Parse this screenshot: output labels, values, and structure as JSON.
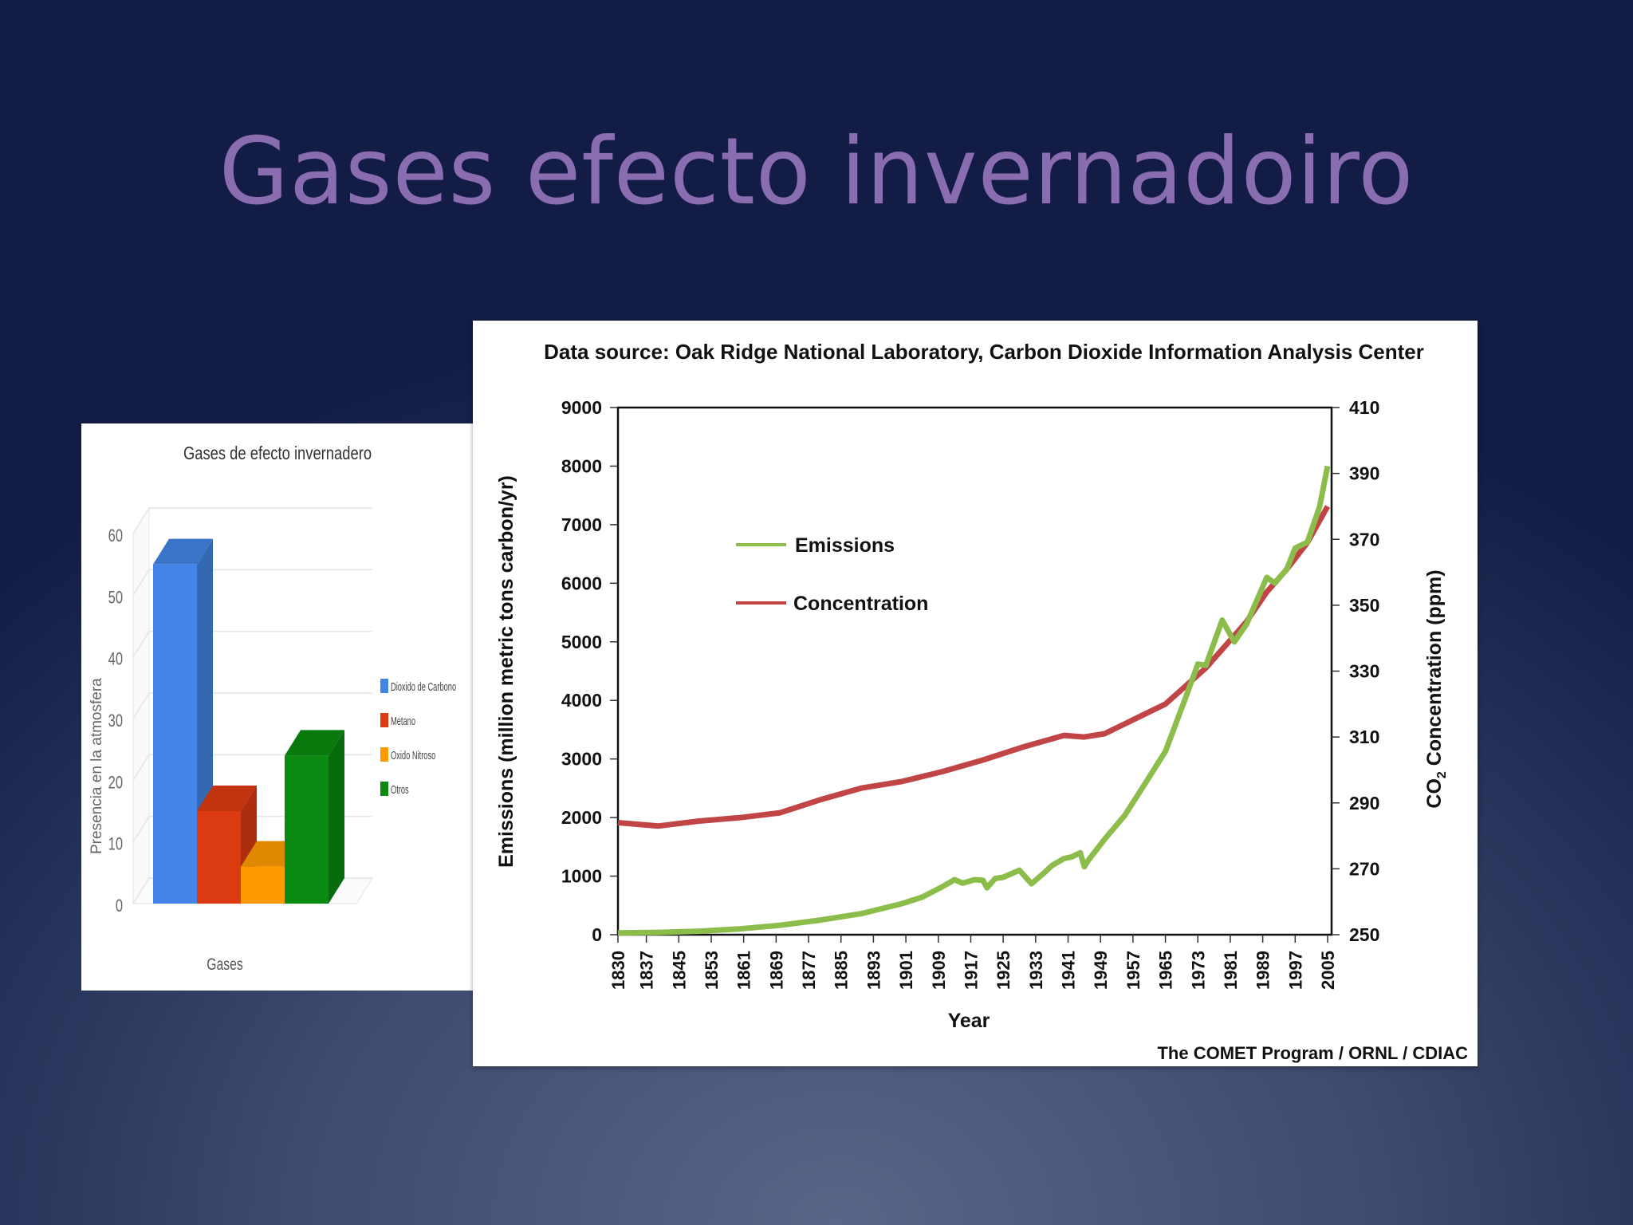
{
  "slide": {
    "title": "Gases efecto invernadoiro"
  },
  "colors": {
    "title": "#8a6db0",
    "emissions": "#8cbd4a",
    "concentration": "#c24545",
    "co2_bar": "#4285e6",
    "methane_bar": "#dc3b12",
    "n2o_bar": "#ff9a00",
    "others_bar": "#0a8a10"
  },
  "left_chart": {
    "title": "Gases de efecto invernadero",
    "ylabel": "Presencia en la atmosfera",
    "xlabel": "Gases",
    "yticks": [
      "0",
      "10",
      "20",
      "30",
      "40",
      "50",
      "60"
    ],
    "legend": [
      "Dioxido de Carbono",
      "Metano",
      "Oxido Nitroso",
      "Otros"
    ]
  },
  "right_chart": {
    "source": "Data source: Oak Ridge National Laboratory, Carbon Dioxide Information Analysis Center",
    "credit": "The COMET Program / ORNL / CDIAC",
    "ylabel_left": "Emissions (million metric tons carbon/yr)",
    "ylabel_right_main": "CO",
    "ylabel_right_sub": "2",
    "ylabel_right_rest": " Concentration (ppm)",
    "xlabel": "Year",
    "legend": {
      "emissions": "Emissions",
      "concentration": "Concentration"
    },
    "yticks_left": [
      "0",
      "1000",
      "2000",
      "3000",
      "4000",
      "5000",
      "6000",
      "7000",
      "8000",
      "9000"
    ],
    "yticks_right": [
      "250",
      "270",
      "290",
      "310",
      "330",
      "350",
      "370",
      "390",
      "410"
    ],
    "xticks": [
      "1830",
      "1837",
      "1845",
      "1853",
      "1861",
      "1869",
      "1877",
      "1885",
      "1893",
      "1901",
      "1909",
      "1917",
      "1925",
      "1933",
      "1941",
      "1949",
      "1957",
      "1965",
      "1973",
      "1981",
      "1989",
      "1997",
      "2005"
    ]
  },
  "chart_data": [
    {
      "type": "bar",
      "title": "Gases de efecto invernadero",
      "xlabel": "Gases",
      "ylabel": "Presencia en la atmosfera",
      "categories": [
        "Dioxido de Carbono",
        "Metano",
        "Oxido Nitroso",
        "Otros"
      ],
      "values": [
        55,
        15,
        6,
        24
      ],
      "ylim": [
        0,
        60
      ],
      "legend_position": "right",
      "style": "3d",
      "grid": true
    },
    {
      "type": "line",
      "title": "Data source: Oak Ridge National Laboratory, Carbon Dioxide Information Analysis Center",
      "xlabel": "Year",
      "ylabel": "Emissions (million metric tons carbon/yr)",
      "ylabel_right": "CO2 Concentration (ppm)",
      "xlim": [
        1830,
        2005
      ],
      "ylim": [
        0,
        9000
      ],
      "ylim_right": [
        250,
        410
      ],
      "legend_position": "upper-left inside",
      "grid": false,
      "series": [
        {
          "name": "Emissions",
          "axis": "left",
          "x": [
            1830,
            1840,
            1850,
            1860,
            1870,
            1880,
            1890,
            1900,
            1905,
            1910,
            1913,
            1915,
            1918,
            1920,
            1921,
            1923,
            1925,
            1929,
            1932,
            1935,
            1937,
            1940,
            1942,
            1944,
            1945,
            1946,
            1950,
            1955,
            1960,
            1965,
            1970,
            1973,
            1975,
            1979,
            1982,
            1985,
            1990,
            1992,
            1995,
            1997,
            2000,
            2003,
            2005
          ],
          "values": [
            30,
            40,
            60,
            100,
            160,
            250,
            360,
            530,
            640,
            820,
            940,
            880,
            940,
            930,
            800,
            960,
            980,
            1100,
            870,
            1050,
            1180,
            1300,
            1330,
            1400,
            1160,
            1270,
            1630,
            2040,
            2580,
            3130,
            4050,
            4620,
            4600,
            5370,
            5000,
            5300,
            6100,
            6000,
            6250,
            6600,
            6700,
            7300,
            8000
          ]
        },
        {
          "name": "Concentration",
          "axis": "right",
          "x": [
            1830,
            1840,
            1850,
            1860,
            1870,
            1880,
            1890,
            1900,
            1910,
            1920,
            1930,
            1940,
            1945,
            1950,
            1955,
            1960,
            1965,
            1970,
            1975,
            1980,
            1985,
            1990,
            1995,
            2000,
            2005
          ],
          "values": [
            284,
            283,
            284.5,
            285.5,
            287,
            291,
            294.5,
            296.5,
            299.5,
            303,
            307,
            310.5,
            310,
            311,
            314,
            317,
            320,
            325.5,
            331,
            338,
            345,
            354,
            361,
            369,
            380
          ]
        }
      ]
    }
  ]
}
